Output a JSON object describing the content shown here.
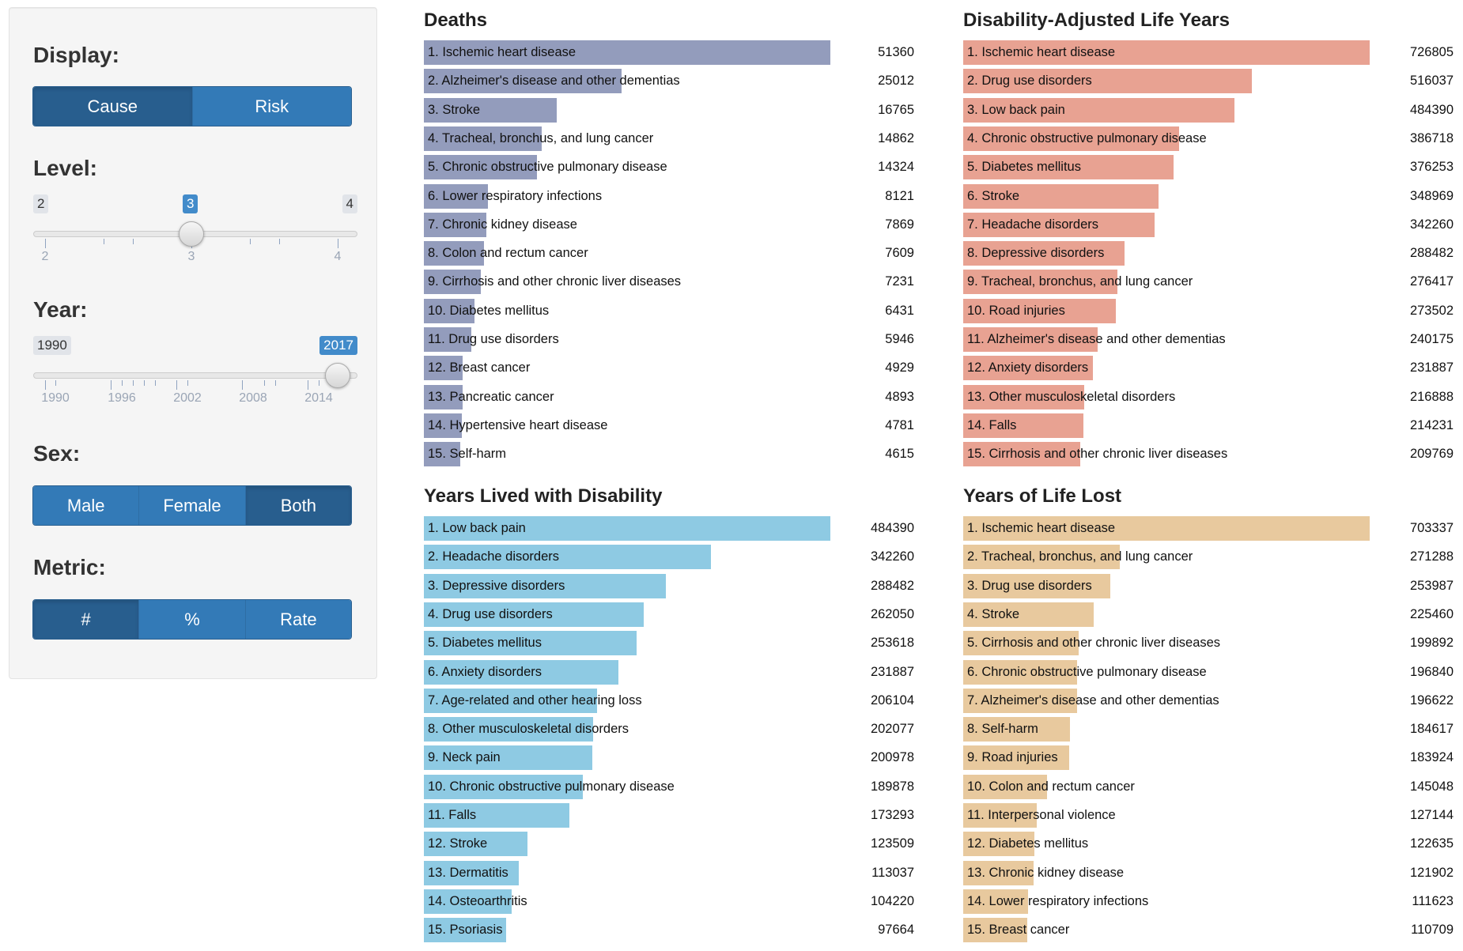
{
  "controls": {
    "display": {
      "label": "Display:",
      "options": [
        "Cause",
        "Risk"
      ],
      "active": "Cause"
    },
    "level": {
      "label": "Level:",
      "min": "2",
      "max": "4",
      "value": "3",
      "grid": [
        "2",
        "3",
        "4"
      ]
    },
    "year": {
      "label": "Year:",
      "min": "1990",
      "max": "2017",
      "value": "2017",
      "grid": [
        "1990",
        "1996",
        "2002",
        "2008",
        "2014"
      ]
    },
    "sex": {
      "label": "Sex:",
      "options": [
        "Male",
        "Female",
        "Both"
      ],
      "active": "Both"
    },
    "metric": {
      "label": "Metric:",
      "options": [
        "#",
        "%",
        "Rate"
      ],
      "active": "#"
    }
  },
  "chart_data": [
    {
      "type": "bar",
      "title": "Deaths",
      "color": "#939cbc",
      "categories": [
        "1. Ischemic heart disease",
        "2. Alzheimer's disease and other dementias",
        "3. Stroke",
        "4. Tracheal, bronchus, and lung cancer",
        "5. Chronic obstructive pulmonary disease",
        "6. Lower respiratory infections",
        "7. Chronic kidney disease",
        "8. Colon and rectum cancer",
        "9. Cirrhosis and other chronic liver diseases",
        "10. Diabetes mellitus",
        "11. Drug use disorders",
        "12. Breast cancer",
        "13. Pancreatic cancer",
        "14. Hypertensive heart disease",
        "15. Self-harm"
      ],
      "values": [
        51360,
        25012,
        16765,
        14862,
        14324,
        8121,
        7869,
        7609,
        7231,
        6431,
        5946,
        4929,
        4893,
        4781,
        4615
      ]
    },
    {
      "type": "bar",
      "title": "Disability-Adjusted Life Years",
      "color": "#e8a292",
      "categories": [
        "1. Ischemic heart disease",
        "2. Drug use disorders",
        "3. Low back pain",
        "4. Chronic obstructive pulmonary disease",
        "5. Diabetes mellitus",
        "6. Stroke",
        "7. Headache disorders",
        "8. Depressive disorders",
        "9. Tracheal, bronchus, and lung cancer",
        "10. Road injuries",
        "11. Alzheimer's disease and other dementias",
        "12. Anxiety disorders",
        "13. Other musculoskeletal disorders",
        "14. Falls",
        "15. Cirrhosis and other chronic liver diseases"
      ],
      "values": [
        726805,
        516037,
        484390,
        386718,
        376253,
        348969,
        342260,
        288482,
        276417,
        273502,
        240175,
        231887,
        216888,
        214231,
        209769
      ]
    },
    {
      "type": "bar",
      "title": "Years Lived with Disability",
      "color": "#8ecae3",
      "categories": [
        "1. Low back pain",
        "2. Headache disorders",
        "3. Depressive disorders",
        "4. Drug use disorders",
        "5. Diabetes mellitus",
        "6. Anxiety disorders",
        "7. Age-related and other hearing loss",
        "8. Other musculoskeletal disorders",
        "9. Neck pain",
        "10. Chronic obstructive pulmonary disease",
        "11. Falls",
        "12. Stroke",
        "13. Dermatitis",
        "14. Osteoarthritis",
        "15. Psoriasis"
      ],
      "values": [
        484390,
        342260,
        288482,
        262050,
        253618,
        231887,
        206104,
        202077,
        200978,
        189878,
        173293,
        123509,
        113037,
        104220,
        97664
      ]
    },
    {
      "type": "bar",
      "title": "Years of Life Lost",
      "color": "#e8c99e",
      "categories": [
        "1. Ischemic heart disease",
        "2. Tracheal, bronchus, and lung cancer",
        "3. Drug use disorders",
        "4. Stroke",
        "5. Cirrhosis and other chronic liver diseases",
        "6. Chronic obstructive pulmonary disease",
        "7. Alzheimer's disease and other dementias",
        "8. Self-harm",
        "9. Road injuries",
        "10. Colon and rectum cancer",
        "11. Interpersonal violence",
        "12. Diabetes mellitus",
        "13. Chronic kidney disease",
        "14. Lower respiratory infections",
        "15. Breast cancer"
      ],
      "values": [
        703337,
        271288,
        253987,
        225460,
        199892,
        196840,
        196622,
        184617,
        183924,
        145048,
        127144,
        122635,
        121902,
        111623,
        110709
      ]
    }
  ]
}
